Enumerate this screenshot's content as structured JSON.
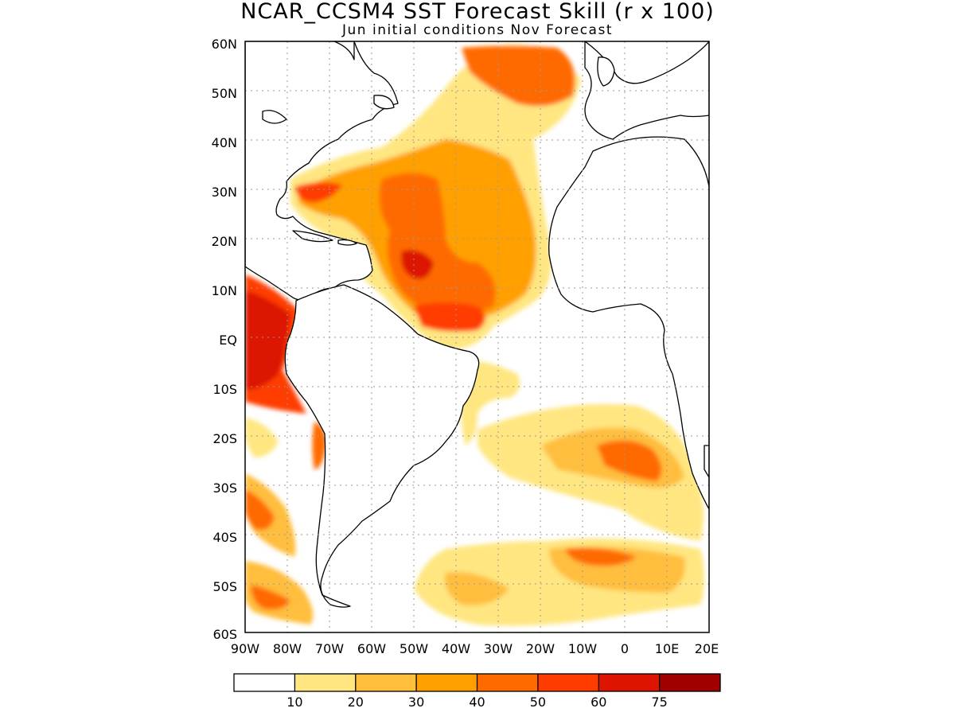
{
  "title": "NCAR_CCSM4 SST Forecast Skill (r x 100)",
  "subtitle": "Jun initial conditions   Nov Forecast",
  "map": {
    "lon_range": [
      -90,
      20
    ],
    "lat_range": [
      -60,
      60
    ],
    "lat_labels": [
      "60N",
      "50N",
      "40N",
      "30N",
      "20N",
      "10N",
      "EQ",
      "10S",
      "20S",
      "30S",
      "40S",
      "50S",
      "60S"
    ],
    "lon_labels": [
      "90W",
      "80W",
      "70W",
      "60W",
      "50W",
      "40W",
      "30W",
      "20W",
      "10W",
      "0",
      "10E",
      "20E"
    ],
    "grid": "dotted"
  },
  "colorbar": {
    "colors": [
      "#ffffff",
      "#ffe680",
      "#ffbe3c",
      "#ffa000",
      "#ff6a00",
      "#ff3c00",
      "#dc1400",
      "#a00000"
    ],
    "labels": [
      "10",
      "20",
      "30",
      "40",
      "50",
      "60",
      "75"
    ]
  }
}
